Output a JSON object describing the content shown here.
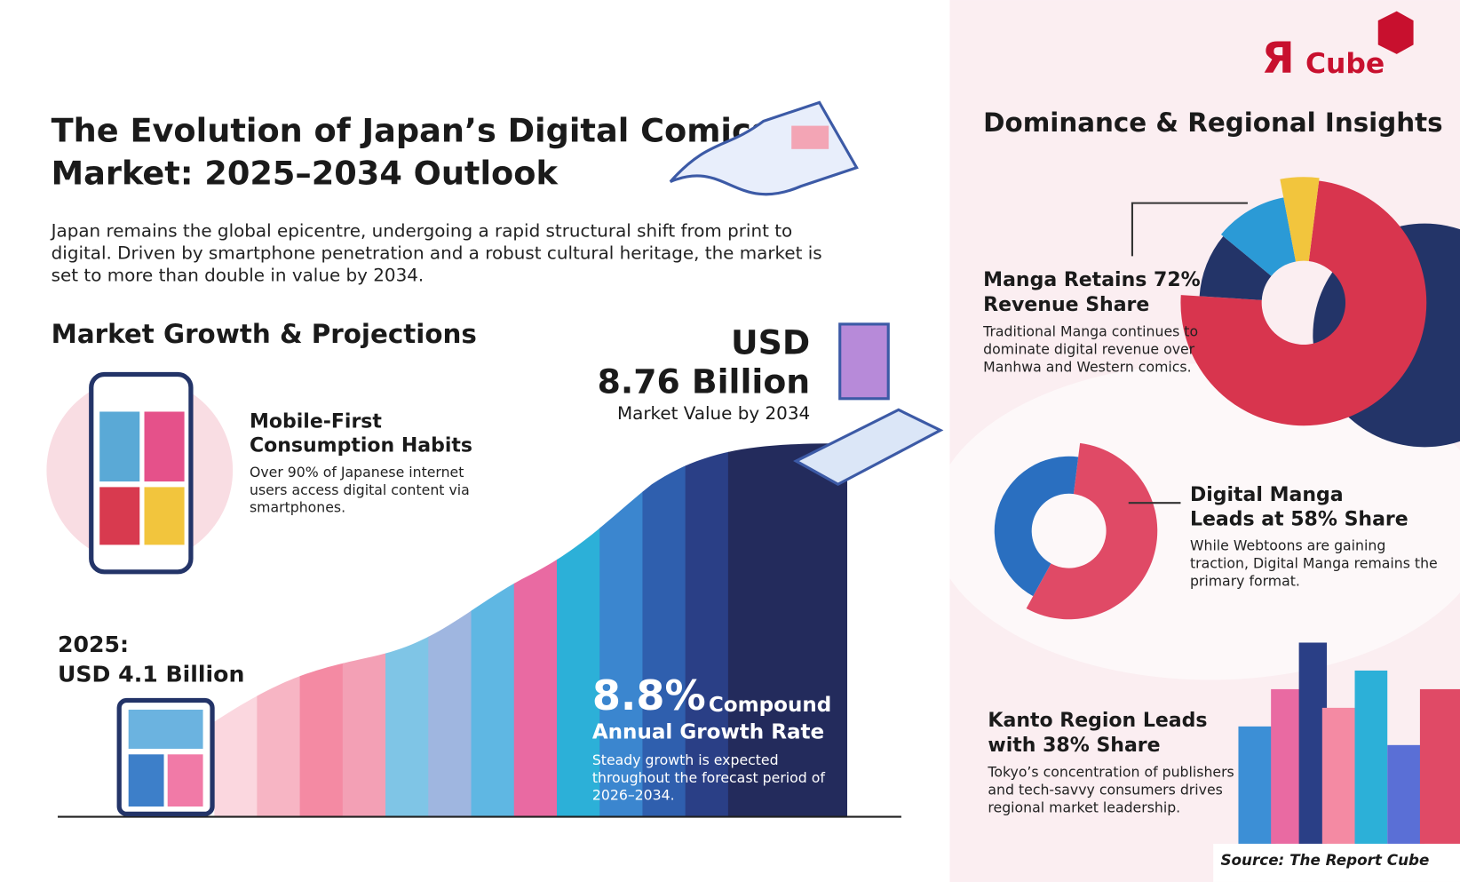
{
  "logo": {
    "mark": "Я",
    "text": "Cube"
  },
  "header": {
    "title": [
      "The Evolution of Japan’s Digital Comics",
      "Market: 2025–2034 Outlook"
    ],
    "intro": [
      "Japan remains the global epicentre, undergoing a rapid structural shift from print to",
      "digital. Driven by smartphone penetration and a robust cultural heritage, the market is",
      "set to more than double in value by 2034."
    ]
  },
  "growth": {
    "heading": "Market Growth & Projections",
    "mobile": {
      "title": [
        "Mobile-First",
        "Consumption Habits"
      ],
      "body": [
        "Over 90% of Japanese internet",
        "users access digital content via",
        "smartphones."
      ]
    },
    "start": [
      "2025:",
      "USD 4.1 Billion"
    ],
    "end": {
      "value": [
        "USD",
        "8.76 Billion"
      ],
      "caption": "Market Value by 2034"
    },
    "cagr": {
      "value": "8.8%",
      "label": [
        "Compound",
        "Annual Growth Rate"
      ],
      "body": [
        "Steady growth is expected",
        "throughout the forecast period of",
        "2026–2034."
      ]
    }
  },
  "insights": {
    "heading": "Dominance & Regional Insights",
    "items": [
      {
        "title": [
          "Manga Retains 72%",
          "Revenue Share"
        ],
        "body": [
          "Traditional Manga continues to",
          "dominate digital revenue over",
          "Manhwa and Western comics."
        ]
      },
      {
        "title": [
          "Digital Manga",
          "Leads at 58% Share"
        ],
        "body": [
          "While Webtoons are gaining",
          "traction, Digital Manga remains the",
          "primary format."
        ]
      },
      {
        "title": [
          "Kanto Region Leads",
          "with 38% Share"
        ],
        "body": [
          "Tokyo’s concentration of publishers",
          "and tech-savvy consumers drives",
          "regional market leadership."
        ]
      }
    ]
  },
  "source": "Source: The Report Cube"
}
